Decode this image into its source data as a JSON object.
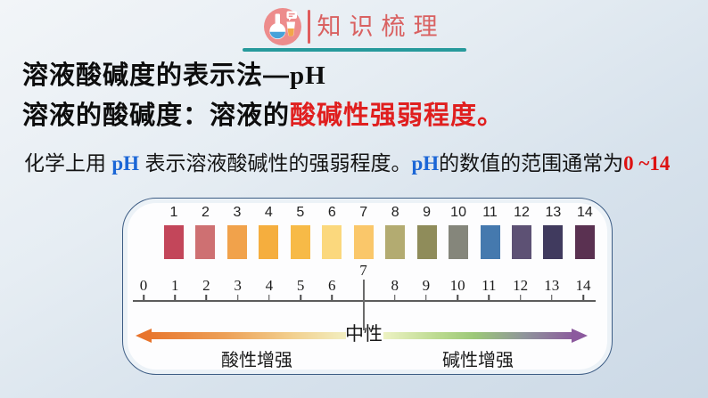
{
  "header": {
    "badge_title": "知识梳理",
    "title_color": "#d96161",
    "divider_color": "#e05c5c",
    "underline_color": "#279a9c",
    "icon": "chemistry-flasks-icon"
  },
  "title": {
    "text_cn": "溶液酸碱度的表示法—",
    "text_ph": "pH"
  },
  "definition": {
    "black_part": "溶液的酸碱度：溶液的",
    "red_part": "酸碱性强弱程度。",
    "red_color": "#e01f1f"
  },
  "description": {
    "s1": "化学上用 ",
    "ph1": "pH",
    "s2": " 表示溶液酸碱性的强弱程度。",
    "ph2": "pH",
    "s3": "的数值的范围通常为",
    "range": "0 ~14",
    "ph_color": "#1b66d6",
    "range_color": "#dd1212"
  },
  "ph_scale": {
    "strip": [
      {
        "value": "1",
        "color": "#c3465a"
      },
      {
        "value": "2",
        "color": "#ce7072"
      },
      {
        "value": "3",
        "color": "#f1a24b"
      },
      {
        "value": "4",
        "color": "#f5ae3e"
      },
      {
        "value": "5",
        "color": "#f7ba47"
      },
      {
        "value": "6",
        "color": "#fbd87d"
      },
      {
        "value": "7",
        "color": "#fac76a"
      },
      {
        "value": "8",
        "color": "#b3ab71"
      },
      {
        "value": "9",
        "color": "#8f8c5a"
      },
      {
        "value": "10",
        "color": "#85867b"
      },
      {
        "value": "11",
        "color": "#4579ae"
      },
      {
        "value": "12",
        "color": "#5d5174"
      },
      {
        "value": "13",
        "color": "#403a5e"
      },
      {
        "value": "14",
        "color": "#5a3151"
      }
    ],
    "ruler_values": [
      "0",
      "1",
      "2",
      "3",
      "4",
      "5",
      "6",
      "7",
      "8",
      "9",
      "10",
      "11",
      "12",
      "13",
      "14"
    ],
    "neutral_value": "7",
    "neutral_label": "中性",
    "acid_label": "酸性增强",
    "base_label": "碱性增强",
    "acid_arrow_color": "#e8742c",
    "base_arrow_color": "#8c5a9e"
  }
}
